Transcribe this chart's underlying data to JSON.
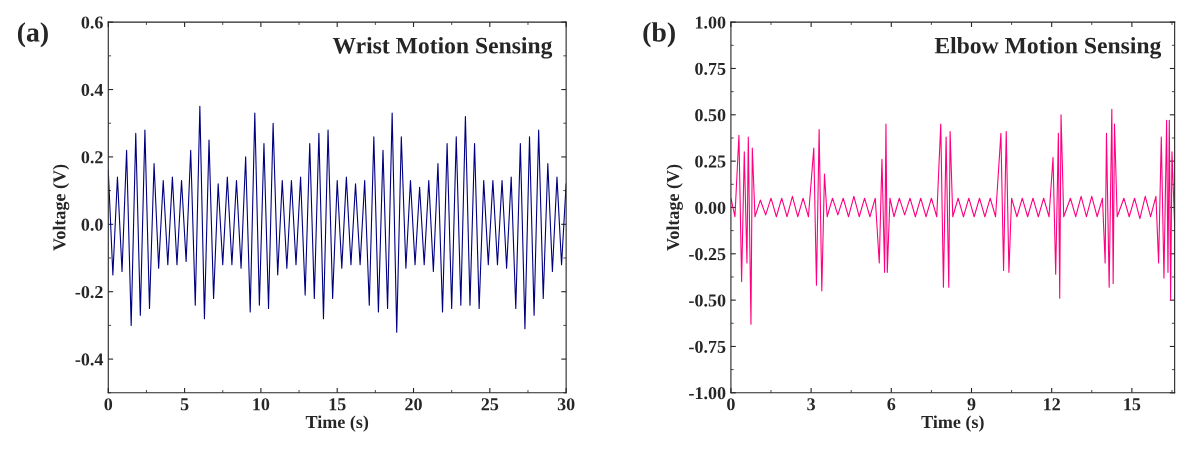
{
  "chart_data": [
    {
      "type": "line",
      "title": "Wrist Motion Sensing",
      "xlabel": "Time (s)",
      "ylabel": "Voltage (V)",
      "annotations": [
        "(a)"
      ],
      "xlim": [
        0,
        30
      ],
      "xticks": [
        0,
        5,
        10,
        15,
        20,
        25,
        30
      ],
      "ylim": [
        -0.5,
        0.6
      ],
      "yticks": [
        {
          "value": -0.4,
          "label": "-0.4"
        },
        {
          "value": -0.2,
          "label": "-0.2"
        },
        {
          "value": 0.0,
          "label": "0.0"
        },
        {
          "value": 0.2,
          "label": "0.2"
        },
        {
          "value": 0.4,
          "label": "0.4"
        },
        {
          "value": 0.6,
          "label": "0.6"
        }
      ],
      "series": [
        {
          "color": "#000080",
          "x": [
            0,
            0.3,
            0.6,
            0.9,
            1.2,
            1.5,
            1.8,
            2.1,
            2.4,
            2.7,
            3.0,
            3.3,
            3.6,
            3.9,
            4.2,
            4.5,
            4.8,
            5.1,
            5.4,
            5.7,
            6.0,
            6.3,
            6.6,
            6.9,
            7.2,
            7.5,
            7.8,
            8.1,
            8.4,
            8.7,
            9.0,
            9.3,
            9.6,
            9.9,
            10.2,
            10.5,
            10.8,
            11.1,
            11.4,
            11.7,
            12.0,
            12.3,
            12.6,
            12.9,
            13.2,
            13.5,
            13.8,
            14.1,
            14.4,
            14.7,
            15.0,
            15.3,
            15.6,
            15.9,
            16.2,
            16.5,
            16.8,
            17.1,
            17.4,
            17.7,
            18.0,
            18.3,
            18.6,
            18.9,
            19.2,
            19.5,
            19.8,
            20.1,
            20.4,
            20.7,
            21.0,
            21.3,
            21.6,
            21.9,
            22.2,
            22.5,
            22.8,
            23.1,
            23.4,
            23.7,
            24.0,
            24.3,
            24.6,
            24.9,
            25.2,
            25.5,
            25.8,
            26.1,
            26.4,
            26.7,
            27.0,
            27.3,
            27.6,
            27.9,
            28.2,
            28.5,
            28.8,
            29.1,
            29.4,
            29.7,
            30.0
          ],
          "values": [
            0.16,
            -0.15,
            0.14,
            -0.14,
            0.22,
            -0.3,
            0.27,
            -0.27,
            0.28,
            -0.25,
            0.18,
            -0.13,
            0.13,
            -0.12,
            0.14,
            -0.12,
            0.13,
            -0.11,
            0.22,
            -0.24,
            0.35,
            -0.28,
            0.25,
            -0.22,
            0.12,
            -0.12,
            0.14,
            -0.12,
            0.13,
            -0.13,
            0.2,
            -0.26,
            0.33,
            -0.24,
            0.24,
            -0.25,
            0.3,
            -0.15,
            0.13,
            -0.13,
            0.13,
            -0.12,
            0.14,
            -0.21,
            0.24,
            -0.22,
            0.27,
            -0.28,
            0.28,
            -0.22,
            0.13,
            -0.13,
            0.14,
            -0.12,
            0.12,
            -0.12,
            0.13,
            -0.24,
            0.26,
            -0.26,
            0.22,
            -0.25,
            0.33,
            -0.32,
            0.26,
            -0.13,
            0.13,
            -0.12,
            0.11,
            -0.12,
            0.13,
            -0.14,
            0.18,
            -0.26,
            0.24,
            -0.25,
            0.26,
            -0.24,
            0.32,
            -0.24,
            0.24,
            -0.25,
            0.13,
            -0.12,
            0.13,
            -0.12,
            0.13,
            -0.13,
            0.14,
            -0.25,
            0.24,
            -0.31,
            0.26,
            -0.27,
            0.28,
            -0.22,
            0.18,
            -0.14,
            0.14,
            -0.12,
            0.12
          ]
        }
      ]
    },
    {
      "type": "line",
      "title": "Elbow Motion Sensing",
      "xlabel": "Time (s)",
      "ylabel": "Voltage (V)",
      "annotations": [
        "(b)"
      ],
      "xlim": [
        0,
        16.6
      ],
      "xticks": [
        0,
        3,
        6,
        9,
        12,
        15
      ],
      "ylim": [
        -1.0,
        1.0
      ],
      "yticks": [
        {
          "value": -1.0,
          "label": "-1.00"
        },
        {
          "value": -0.75,
          "label": "-0.75"
        },
        {
          "value": -0.5,
          "label": "-0.50"
        },
        {
          "value": -0.25,
          "label": "-0.25"
        },
        {
          "value": 0.0,
          "label": "0.00"
        },
        {
          "value": 0.25,
          "label": "0.25"
        },
        {
          "value": 0.5,
          "label": "0.50"
        },
        {
          "value": 0.75,
          "label": "0.75"
        },
        {
          "value": 1.0,
          "label": "1.00"
        }
      ],
      "series": [
        {
          "color": "#ff0080",
          "x": [
            0,
            0.15,
            0.3,
            0.4,
            0.5,
            0.6,
            0.65,
            0.75,
            0.8,
            0.9,
            1.1,
            1.3,
            1.5,
            1.7,
            1.9,
            2.1,
            2.3,
            2.5,
            2.7,
            2.9,
            3.1,
            3.2,
            3.3,
            3.4,
            3.5,
            3.6,
            3.8,
            4.0,
            4.2,
            4.4,
            4.6,
            4.8,
            5.0,
            5.2,
            5.4,
            5.55,
            5.65,
            5.75,
            5.8,
            5.85,
            5.95,
            6.1,
            6.3,
            6.5,
            6.7,
            6.9,
            7.1,
            7.3,
            7.5,
            7.7,
            7.85,
            7.95,
            8.05,
            8.15,
            8.2,
            8.3,
            8.5,
            8.7,
            8.9,
            9.1,
            9.3,
            9.5,
            9.7,
            9.9,
            10.1,
            10.2,
            10.3,
            10.4,
            10.5,
            10.7,
            10.9,
            11.1,
            11.3,
            11.5,
            11.7,
            11.9,
            12.05,
            12.15,
            12.25,
            12.3,
            12.35,
            12.45,
            12.7,
            12.9,
            13.1,
            13.3,
            13.5,
            13.7,
            13.9,
            14.0,
            14.05,
            14.15,
            14.25,
            14.3,
            14.35,
            14.45,
            14.7,
            14.9,
            15.1,
            15.3,
            15.5,
            15.7,
            15.9,
            16.0,
            16.1,
            16.2,
            16.3,
            16.35,
            16.4,
            16.45,
            16.5,
            16.6
          ],
          "values": [
            0.05,
            -0.05,
            0.39,
            -0.4,
            0.3,
            -0.3,
            0.38,
            -0.63,
            0.32,
            -0.05,
            0.04,
            -0.04,
            0.05,
            -0.05,
            0.05,
            -0.05,
            0.06,
            -0.05,
            0.05,
            -0.05,
            0.32,
            -0.42,
            0.42,
            -0.45,
            0.18,
            -0.05,
            0.05,
            -0.04,
            0.05,
            -0.05,
            0.06,
            -0.05,
            0.05,
            -0.05,
            0.05,
            -0.3,
            0.26,
            -0.35,
            0.45,
            -0.35,
            0.05,
            -0.05,
            0.05,
            -0.04,
            0.05,
            -0.05,
            0.05,
            -0.05,
            0.05,
            -0.05,
            0.45,
            -0.43,
            0.38,
            -0.43,
            0.41,
            -0.05,
            0.05,
            -0.05,
            0.05,
            -0.05,
            0.05,
            -0.05,
            0.05,
            -0.05,
            0.4,
            -0.34,
            0.41,
            -0.35,
            0.05,
            -0.05,
            0.05,
            -0.05,
            0.05,
            -0.05,
            0.05,
            -0.05,
            0.27,
            -0.36,
            0.4,
            -0.49,
            0.5,
            -0.05,
            0.05,
            -0.05,
            0.06,
            -0.05,
            0.06,
            -0.05,
            0.05,
            -0.3,
            0.4,
            -0.43,
            0.53,
            -0.41,
            0.45,
            -0.05,
            0.05,
            -0.05,
            0.05,
            -0.06,
            0.06,
            -0.05,
            0.06,
            -0.3,
            0.38,
            -0.38,
            0.47,
            -0.35,
            0.47,
            -0.5,
            0.3,
            -0.1
          ]
        }
      ]
    }
  ]
}
